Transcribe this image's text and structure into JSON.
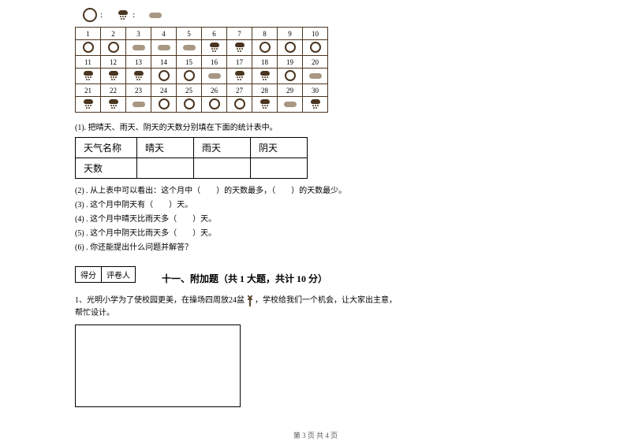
{
  "legend": {
    "sunny": ":",
    "rainy": ":",
    "cloudy": ""
  },
  "calendar": {
    "days": [
      "1",
      "2",
      "3",
      "4",
      "5",
      "6",
      "7",
      "8",
      "9",
      "10",
      "11",
      "12",
      "13",
      "14",
      "15",
      "16",
      "17",
      "18",
      "19",
      "20",
      "21",
      "22",
      "23",
      "24",
      "25",
      "26",
      "27",
      "28",
      "29",
      "30"
    ],
    "weather": [
      "sunny",
      "sunny",
      "cloudy",
      "cloudy",
      "cloudy",
      "rainy",
      "rainy",
      "sunny",
      "sunny",
      "sunny",
      "rainy",
      "rainy",
      "rainy",
      "sunny",
      "sunny",
      "cloudy",
      "rainy",
      "rainy",
      "sunny",
      "cloudy",
      "rainy",
      "rainy",
      "cloudy",
      "sunny",
      "sunny",
      "sunny",
      "sunny",
      "rainy",
      "cloudy",
      "rainy"
    ]
  },
  "q1_instruction": "(1). 把晴天、雨天、阴天的天数分别填在下面的统计表中。",
  "stats_table": {
    "header_label": "天气名称",
    "count_label": "天数",
    "col_sunny": "晴天",
    "col_rainy": "雨天",
    "col_cloudy": "阴天",
    "val_sunny": "",
    "val_rainy": "",
    "val_cloudy": ""
  },
  "q2": "(2) . 从上表中可以看出：这个月中（　　）的天数最多，（　　）的天数最少。",
  "q3": "(3) . 这个月中阴天有（　　）天。",
  "q4": "(4) . 这个月中晴天比雨天多（　　）天。",
  "q5": "(5) . 这个月中阴天比雨天多（　　）天。",
  "q6": "(6) . 你还能提出什么问题并解答？",
  "score": {
    "label1": "得分",
    "label2": "评卷人"
  },
  "section_title": "十一、附加题（共 1 大题，共计 10 分）",
  "bonus_q_p1": "1、光明小学为了使校园更美，在操场四周放24盆",
  "bonus_q_p2": "，学校给我们一个机会，让大家出主意，",
  "bonus_q_p3": "帮忙设计。",
  "footer": "第 3 页 共 4 页"
}
